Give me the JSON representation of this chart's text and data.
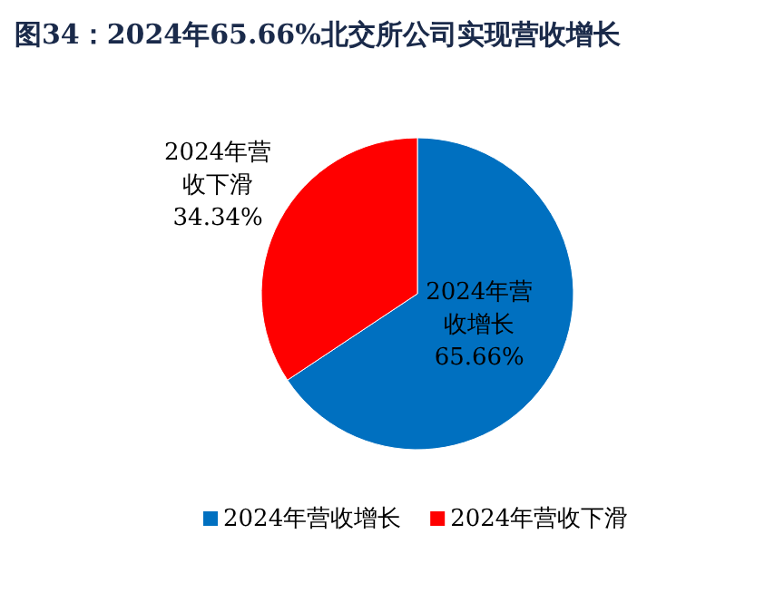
{
  "chart_data": {
    "type": "pie",
    "title": "图34：2024年65.66%北交所公司实现营收增长",
    "categories": [
      "2024年营收增长",
      "2024年营收下滑"
    ],
    "values": [
      65.66,
      34.34
    ],
    "colors": [
      "#0070c0",
      "#ff0000"
    ],
    "value_labels": [
      "65.66%",
      "34.34%"
    ],
    "legend": "bottom"
  }
}
